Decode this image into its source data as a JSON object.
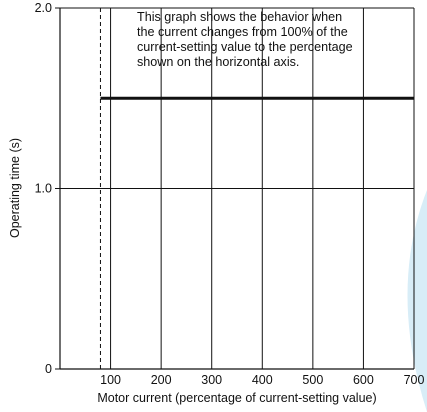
{
  "chart_data": {
    "type": "line",
    "title": "",
    "xlabel": "Motor current (percentage of current-setting value)",
    "ylabel": "Operating time (s)",
    "xlim": [
      0,
      700
    ],
    "ylim": [
      0,
      2.0
    ],
    "x_ticks": [
      100,
      200,
      300,
      400,
      500,
      600,
      700
    ],
    "x_tick_labels": [
      "100",
      "200",
      "300",
      "400",
      "500",
      "600",
      "700"
    ],
    "y_ticks": [
      0,
      1.0,
      2.0
    ],
    "y_tick_labels": [
      "0",
      "1.0",
      "2.0"
    ],
    "grid": "vertical lines at 100–700, horizontal line at 1.0",
    "reference_line": {
      "x": 80,
      "style": "dashed"
    },
    "series": [
      {
        "x": [
          80,
          700
        ],
        "y": [
          1.5,
          1.5
        ]
      }
    ],
    "annotation_lines": [
      "This graph shows the behavior when",
      "the current changes from 100% of the",
      "current-setting value to the percentage",
      "shown on the horizontal axis."
    ]
  },
  "colors": {
    "axis": "#111111",
    "series": "#111111",
    "decoration": "#d8edf7"
  }
}
